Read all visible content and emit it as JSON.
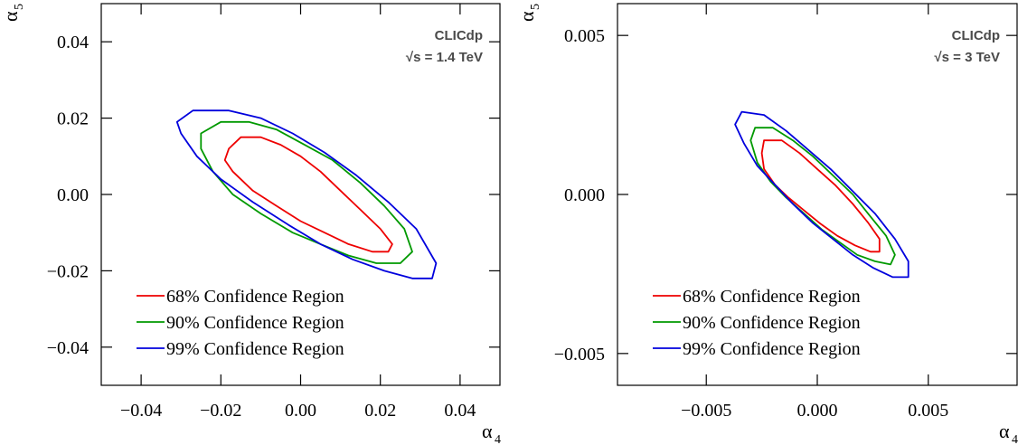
{
  "chart_data": [
    {
      "type": "line",
      "collaboration": "CLICdp",
      "energy": "√s = 1.4 TeV",
      "xlabel": "α",
      "xlabel_sub": "4",
      "ylabel": "α",
      "ylabel_sub": "5",
      "xlim": [
        -0.05,
        0.05
      ],
      "ylim": [
        -0.05,
        0.05
      ],
      "xticks": [
        -0.04,
        -0.02,
        0.0,
        0.02,
        0.04
      ],
      "xtick_labels": [
        "−0.04",
        "−0.02",
        "0.00",
        "0.02",
        "0.04"
      ],
      "yticks": [
        -0.04,
        -0.02,
        0.0,
        0.02,
        0.04
      ],
      "ytick_labels": [
        "−0.04",
        "−0.02",
        "0.00",
        "0.02",
        "0.04"
      ],
      "legend_position": "bottom-left",
      "series": [
        {
          "name": "68% Confidence Region",
          "color": "#ee0000",
          "x": [
            -0.018,
            -0.015,
            -0.01,
            -0.005,
            0.0,
            0.005,
            0.01,
            0.015,
            0.02,
            0.023,
            0.022,
            0.018,
            0.012,
            0.006,
            0.0,
            -0.006,
            -0.012,
            -0.017,
            -0.019,
            -0.018
          ],
          "y": [
            0.012,
            0.015,
            0.015,
            0.013,
            0.01,
            0.006,
            0.001,
            -0.004,
            -0.009,
            -0.013,
            -0.015,
            -0.015,
            -0.013,
            -0.01,
            -0.007,
            -0.003,
            0.001,
            0.006,
            0.009,
            0.012
          ]
        },
        {
          "name": "90% Confidence Region",
          "color": "#009900",
          "x": [
            -0.025,
            -0.02,
            -0.013,
            -0.006,
            0.001,
            0.008,
            0.015,
            0.021,
            0.026,
            0.028,
            0.025,
            0.019,
            0.012,
            0.005,
            -0.002,
            -0.01,
            -0.017,
            -0.022,
            -0.025,
            -0.025
          ],
          "y": [
            0.016,
            0.019,
            0.019,
            0.017,
            0.013,
            0.009,
            0.003,
            -0.003,
            -0.009,
            -0.015,
            -0.018,
            -0.018,
            -0.016,
            -0.013,
            -0.01,
            -0.005,
            0.0,
            0.006,
            0.012,
            0.016
          ]
        },
        {
          "name": "99% Confidence Region",
          "color": "#0000dd",
          "x": [
            -0.031,
            -0.027,
            -0.018,
            -0.01,
            -0.002,
            0.006,
            0.014,
            0.022,
            0.029,
            0.034,
            0.033,
            0.028,
            0.021,
            0.013,
            0.005,
            -0.003,
            -0.012,
            -0.02,
            -0.026,
            -0.03,
            -0.031
          ],
          "y": [
            0.019,
            0.022,
            0.022,
            0.02,
            0.016,
            0.011,
            0.005,
            -0.002,
            -0.009,
            -0.018,
            -0.022,
            -0.022,
            -0.02,
            -0.017,
            -0.013,
            -0.008,
            -0.002,
            0.004,
            0.01,
            0.016,
            0.019
          ]
        }
      ]
    },
    {
      "type": "line",
      "collaboration": "CLICdp",
      "energy": "√s = 3 TeV",
      "xlabel": "α",
      "xlabel_sub": "4",
      "ylabel": "α",
      "ylabel_sub": "5",
      "xlim": [
        -0.009,
        0.009
      ],
      "ylim": [
        -0.006,
        0.006
      ],
      "xticks": [
        -0.005,
        0.0,
        0.005
      ],
      "xtick_labels": [
        "−0.005",
        "0.000",
        "0.005"
      ],
      "yticks": [
        -0.005,
        0.0,
        0.005
      ],
      "ytick_labels": [
        "−0.005",
        "0.000",
        "0.005"
      ],
      "legend_position": "bottom-left",
      "series": [
        {
          "name": "68% Confidence Region",
          "color": "#ee0000",
          "x": [
            -0.0025,
            -0.0024,
            -0.0016,
            -0.0008,
            0.0,
            0.0008,
            0.0016,
            0.0023,
            0.0028,
            0.0028,
            0.0024,
            0.0017,
            0.0009,
            0.0001,
            -0.0006,
            -0.0013,
            -0.0019,
            -0.0024,
            -0.0025
          ],
          "y": [
            0.0013,
            0.0017,
            0.0017,
            0.0013,
            0.0008,
            0.0003,
            -0.0003,
            -0.0009,
            -0.0014,
            -0.0018,
            -0.0018,
            -0.0016,
            -0.0013,
            -0.0009,
            -0.0005,
            -0.0001,
            0.0003,
            0.0008,
            0.0013
          ]
        },
        {
          "name": "90% Confidence Region",
          "color": "#009900",
          "x": [
            -0.003,
            -0.0028,
            -0.002,
            -0.0011,
            -0.0002,
            0.0007,
            0.0016,
            0.0024,
            0.0031,
            0.0035,
            0.0033,
            0.0026,
            0.0018,
            0.001,
            0.0002,
            -0.0006,
            -0.0014,
            -0.0021,
            -0.0027,
            -0.003
          ],
          "y": [
            0.0017,
            0.0021,
            0.0021,
            0.0017,
            0.0012,
            0.0006,
            0.0,
            -0.0007,
            -0.0013,
            -0.0019,
            -0.0022,
            -0.0021,
            -0.0019,
            -0.0015,
            -0.0011,
            -0.0006,
            -0.0001,
            0.0004,
            0.001,
            0.0017
          ]
        },
        {
          "name": "99% Confidence Region",
          "color": "#0000dd",
          "x": [
            -0.0037,
            -0.0034,
            -0.0024,
            -0.0014,
            -0.0004,
            0.0006,
            0.0016,
            0.0026,
            0.0035,
            0.0041,
            0.0041,
            0.0034,
            0.0025,
            0.0016,
            0.0007,
            -0.0002,
            -0.0011,
            -0.0019,
            -0.0027,
            -0.0033,
            -0.0037
          ],
          "y": [
            0.0022,
            0.0026,
            0.0025,
            0.002,
            0.0014,
            0.0008,
            0.0001,
            -0.0006,
            -0.0014,
            -0.0021,
            -0.0026,
            -0.0026,
            -0.0023,
            -0.0019,
            -0.0014,
            -0.0009,
            -0.0003,
            0.0003,
            0.0009,
            0.0016,
            0.0022
          ]
        }
      ]
    }
  ]
}
